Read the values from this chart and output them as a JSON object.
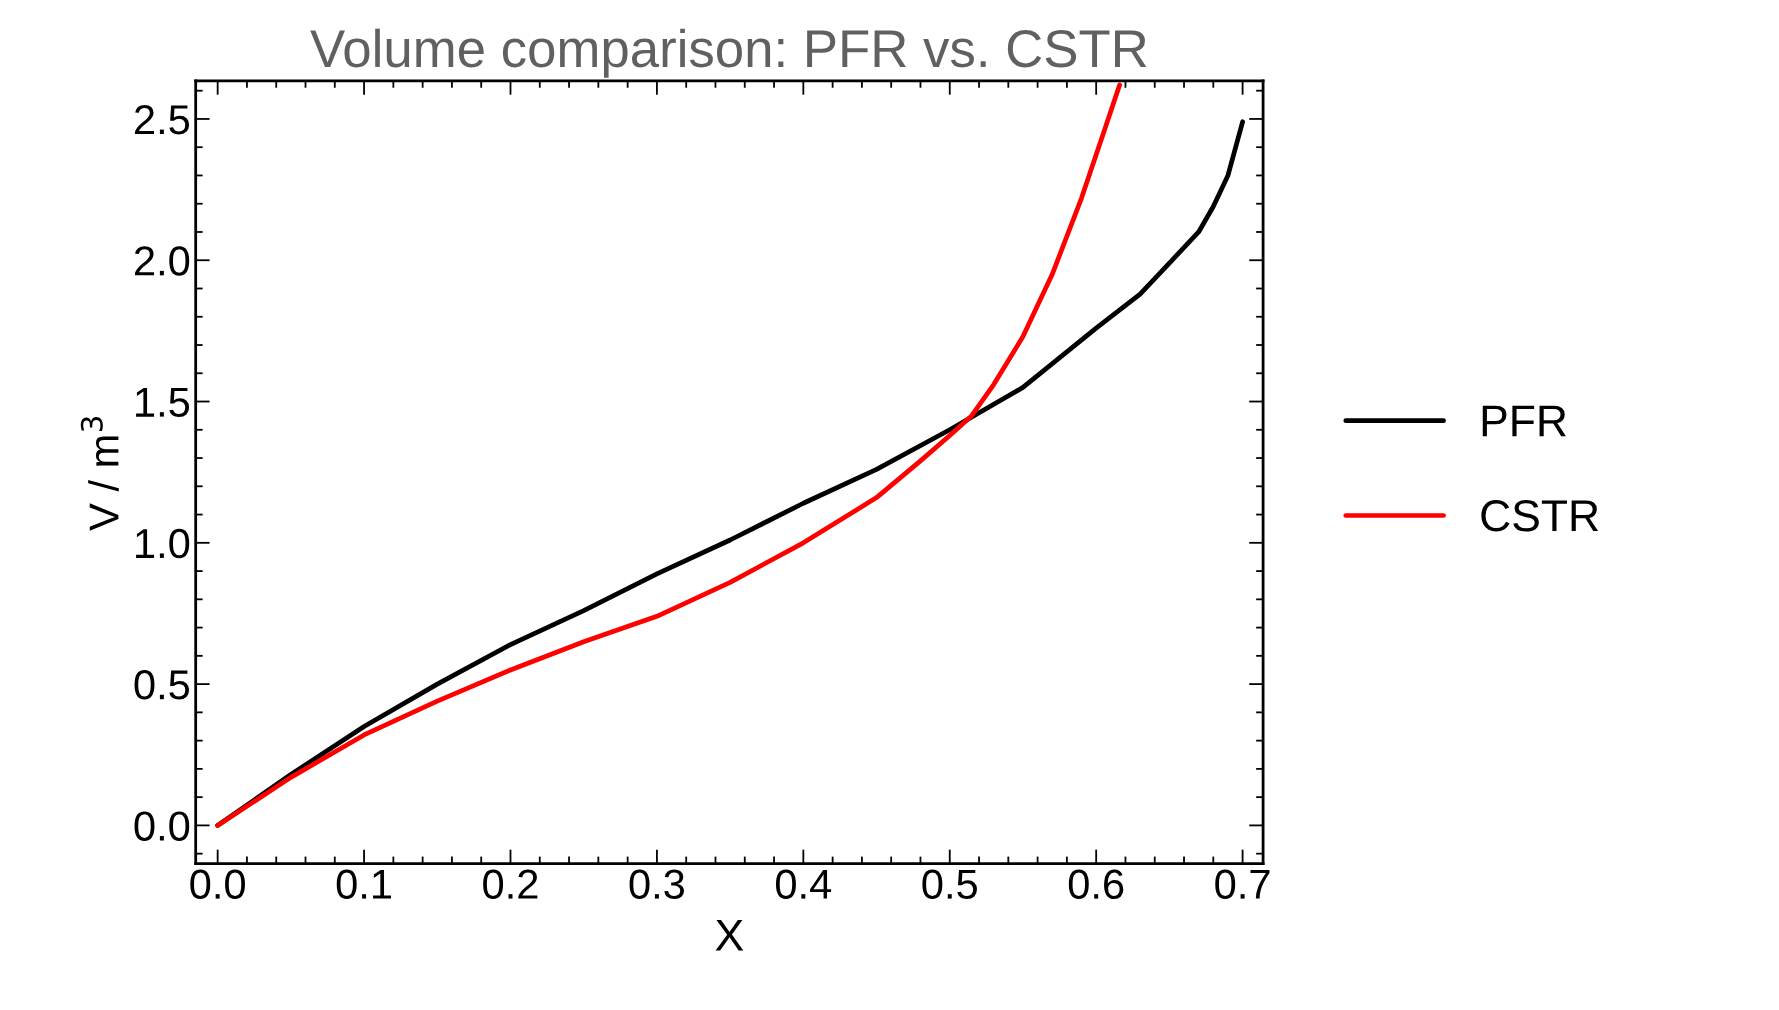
{
  "chart_data": {
    "type": "line",
    "title": "Volume comparison: PFR vs. CSTR",
    "xlabel": "X",
    "ylabel": "V / m$^{3}$",
    "xlim": [
      -0.015,
      0.714
    ],
    "ylim": [
      -0.135,
      2.635
    ],
    "xticks": [
      {
        "value": 0,
        "label": "0.0"
      },
      0.1,
      0.2,
      0.3,
      0.4,
      0.5,
      0.6,
      0.7
    ],
    "yticks": [
      {
        "value": 0,
        "label": "0.0"
      },
      0.5,
      {
        "value": 1,
        "label": "1.0"
      },
      1.5,
      {
        "value": 2,
        "label": "2.0"
      },
      2.5
    ],
    "grid": false,
    "legend": "right",
    "marker": "none",
    "line_style": "solid",
    "series": [
      {
        "name": "PFR",
        "color": "#000000",
        "x": [
          0,
          0.05,
          0.1,
          0.15,
          0.2,
          0.25,
          0.3,
          0.35,
          0.4,
          0.45,
          0.5,
          0.55,
          0.6,
          0.63,
          0.65,
          0.67,
          0.68,
          0.69,
          0.7
        ],
        "values": [
          0,
          0.18,
          0.35,
          0.5,
          0.64,
          0.76,
          0.89,
          1.01,
          1.14,
          1.26,
          1.4,
          1.55,
          1.76,
          1.88,
          1.99,
          2.1,
          2.19,
          2.3,
          2.49
        ]
      },
      {
        "name": "CSTR",
        "color": "#ff0000",
        "x": [
          0,
          0.05,
          0.1,
          0.15,
          0.2,
          0.25,
          0.3,
          0.35,
          0.4,
          0.45,
          0.48,
          0.5,
          0.515,
          0.53,
          0.55,
          0.57,
          0.59,
          0.605,
          0.616
        ],
        "values": [
          0,
          0.17,
          0.32,
          0.44,
          0.55,
          0.65,
          0.74,
          0.86,
          1.0,
          1.16,
          1.29,
          1.38,
          1.45,
          1.56,
          1.73,
          1.95,
          2.22,
          2.45,
          2.62
        ]
      }
    ]
  }
}
